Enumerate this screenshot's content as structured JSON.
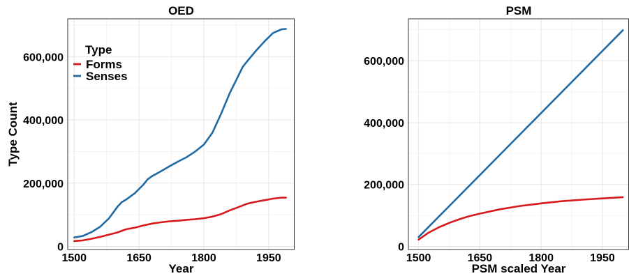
{
  "colors": {
    "forms": "#d7191c",
    "senses": "#1f6aa5"
  },
  "chart_data": [
    {
      "type": "line",
      "title": "OED",
      "xlabel": "Year",
      "ylabel": "Type Count",
      "xlim": [
        1485,
        2010
      ],
      "ylim": [
        -10000,
        720000
      ],
      "xticks": [
        1500,
        1650,
        1800,
        1950
      ],
      "xtick_labels": [
        "1500",
        "1650",
        "1800",
        "1950"
      ],
      "yticks": [
        0,
        200000,
        400000,
        600000
      ],
      "ytick_labels": [
        "0",
        "200,000",
        "400,000",
        "600,000"
      ],
      "grid": true,
      "legend": {
        "title": "Type",
        "placement": "top-left",
        "entries": [
          "Forms",
          "Senses"
        ]
      },
      "series": [
        {
          "name": "Forms",
          "color_key": "forms",
          "x": [
            1500,
            1520,
            1540,
            1560,
            1580,
            1600,
            1620,
            1640,
            1660,
            1680,
            1700,
            1720,
            1740,
            1760,
            1780,
            1800,
            1820,
            1840,
            1860,
            1880,
            1900,
            1920,
            1940,
            1960,
            1980,
            1990
          ],
          "y": [
            17000,
            19000,
            24000,
            30000,
            37000,
            44000,
            54000,
            59000,
            66000,
            72000,
            76000,
            79000,
            81000,
            84000,
            86000,
            89000,
            94000,
            102000,
            114000,
            124000,
            135000,
            141000,
            146000,
            151000,
            154000,
            154000
          ]
        },
        {
          "name": "Senses",
          "color_key": "senses",
          "x": [
            1500,
            1520,
            1540,
            1560,
            1580,
            1600,
            1610,
            1620,
            1640,
            1660,
            1670,
            1680,
            1700,
            1720,
            1740,
            1760,
            1780,
            1800,
            1820,
            1840,
            1860,
            1880,
            1890,
            1900,
            1920,
            1940,
            1960,
            1980,
            1990
          ],
          "y": [
            28000,
            33000,
            45000,
            62000,
            88000,
            125000,
            140000,
            148000,
            168000,
            195000,
            212000,
            222000,
            237000,
            253000,
            268000,
            282000,
            300000,
            322000,
            360000,
            420000,
            485000,
            540000,
            568000,
            585000,
            618000,
            648000,
            675000,
            687000,
            688000
          ]
        }
      ]
    },
    {
      "type": "line",
      "title": "PSM",
      "xlabel": "PSM scaled Year",
      "ylabel": "",
      "xlim": [
        1475,
        2015
      ],
      "ylim": [
        -10000,
        735000
      ],
      "xticks": [
        1500,
        1650,
        1800,
        1950
      ],
      "xtick_labels": [
        "1500",
        "1650",
        "1800",
        "1950"
      ],
      "yticks": [
        0,
        200000,
        400000,
        600000
      ],
      "ytick_labels": [
        "0",
        "200,000",
        "400,000",
        "600,000"
      ],
      "grid": true,
      "series": [
        {
          "name": "Forms",
          "color_key": "forms",
          "x": [
            1500,
            1525,
            1550,
            1575,
            1600,
            1625,
            1650,
            1700,
            1750,
            1800,
            1850,
            1900,
            1950,
            2000
          ],
          "y": [
            22000,
            45000,
            62000,
            76000,
            88000,
            98000,
            106000,
            120000,
            131000,
            139000,
            146000,
            151000,
            155000,
            159000
          ]
        },
        {
          "name": "Senses",
          "color_key": "senses",
          "x": [
            1500,
            2000
          ],
          "y": [
            30000,
            698000
          ]
        }
      ]
    }
  ]
}
